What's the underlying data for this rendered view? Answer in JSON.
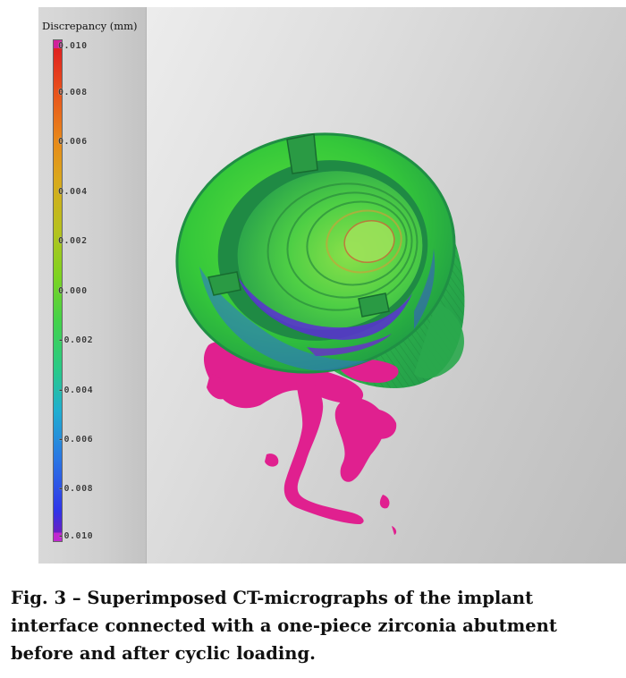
{
  "legend": {
    "title": "Discrepancy (mm)",
    "ticks": [
      "0.010",
      "0.008",
      "0.006",
      "0.004",
      "0.002",
      "0.000",
      "-0.002",
      "-0.004",
      "-0.006",
      "-0.008",
      "-0.010"
    ]
  },
  "caption": "Fig. 3 – Superimposed CT-micrographs of the implant interface connected with a one-piece zirconia abutment before and after cyclic loading.",
  "colors": {
    "max": "#d1219a",
    "high": "#e02020",
    "mid": "#44d24a",
    "low": "#3034e8",
    "min": "#c028d0",
    "residue": "#e0208f"
  }
}
